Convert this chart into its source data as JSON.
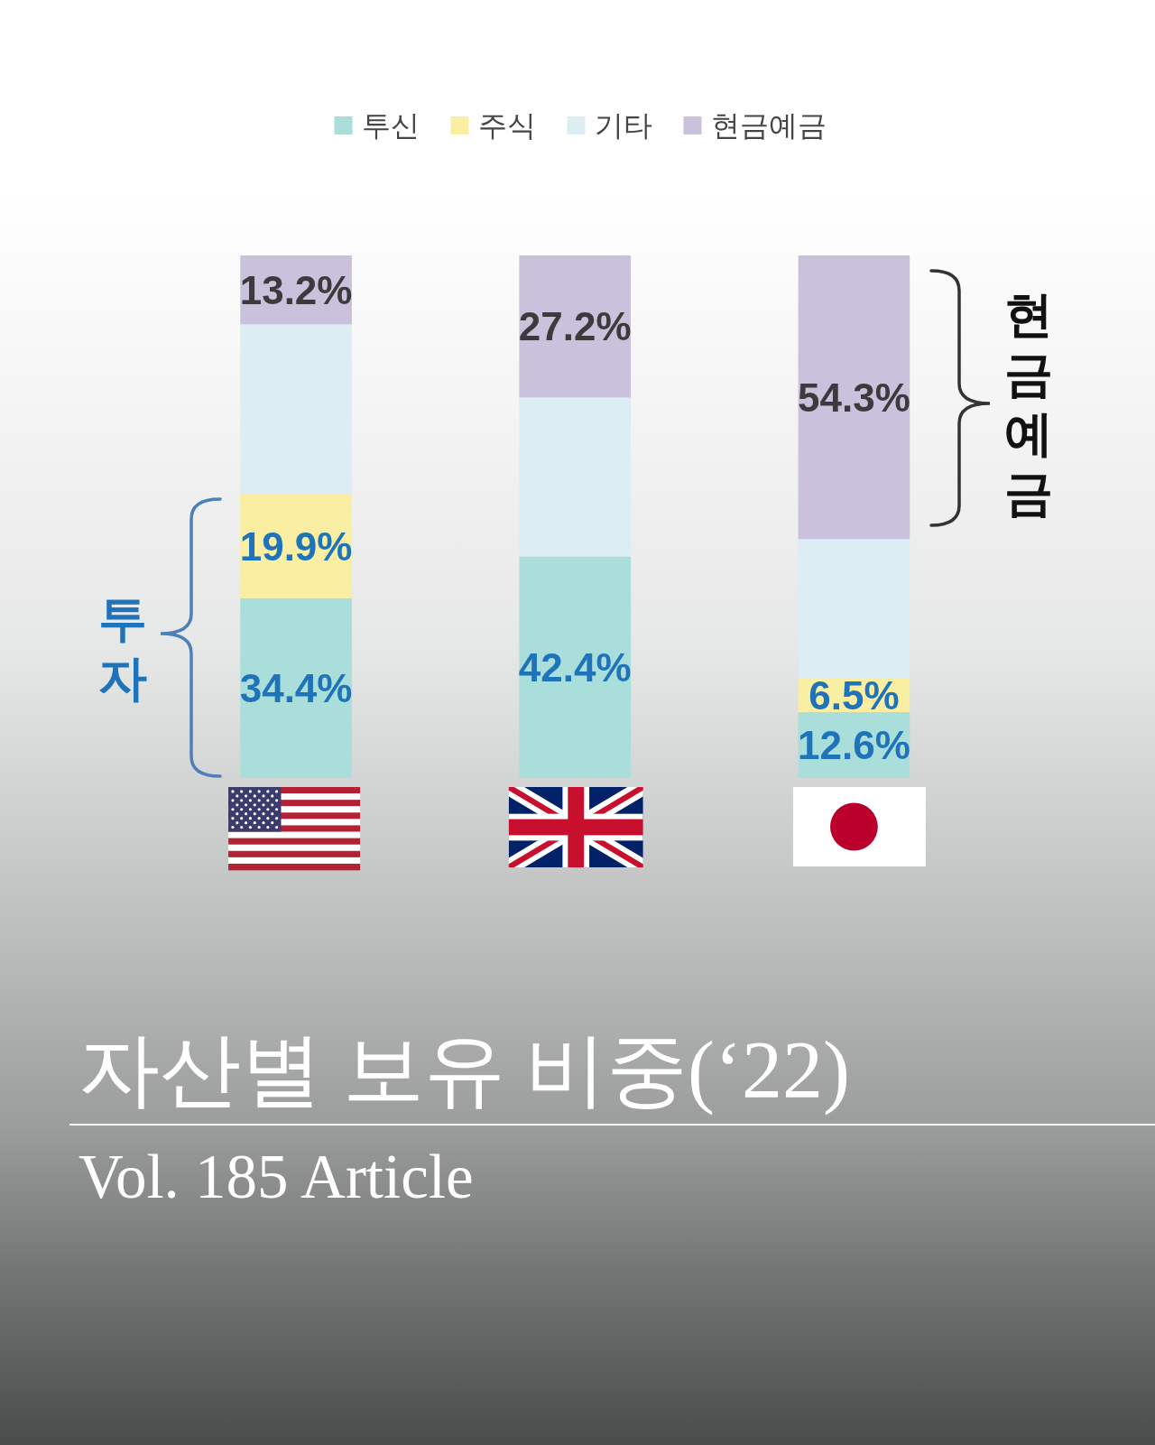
{
  "chart_data": {
    "type": "bar",
    "stacked": true,
    "title": "자산별 보유 비중(‘22)",
    "subtitle": "Vol. 185 Article",
    "categories": [
      null,
      null,
      null
    ],
    "ylim": [
      0,
      100
    ],
    "legend": "top",
    "series": [
      {
        "name": "투신",
        "color": "#aadeda",
        "values": [
          34.4,
          42.4,
          12.6
        ],
        "value_labels": [
          "34.4%",
          "42.4%",
          "12.6%"
        ]
      },
      {
        "name": "주식",
        "color": "#f9eea1",
        "values": [
          19.9,
          null,
          6.5
        ],
        "value_labels": [
          "19.9%",
          null,
          "6.5%"
        ]
      },
      {
        "name": "기타",
        "color": "#dcedf3",
        "values": [
          32.5,
          30.4,
          26.6
        ]
      },
      {
        "name": "현금예금",
        "color": "#cac2dc",
        "values": [
          13.2,
          27.2,
          54.3
        ],
        "value_labels": [
          "13.2%",
          "27.2%",
          "54.3%"
        ]
      }
    ],
    "annotations": [
      "투자",
      "현금예금"
    ]
  }
}
